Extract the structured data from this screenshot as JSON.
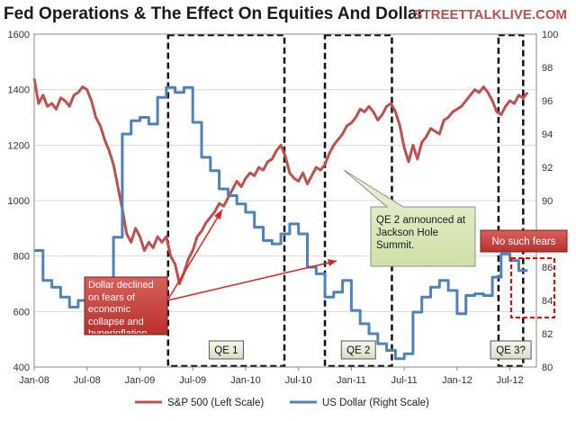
{
  "chart_data": {
    "type": "line",
    "title": "Fed Operations & The Effect On Equities And Dollar",
    "brand": "STREETTALKLIVE.COM",
    "x_ticks": [
      "Jan-08",
      "Jul-08",
      "Jan-09",
      "Jul-09",
      "Jan-10",
      "Jul-10",
      "Jan-11",
      "Jul-11",
      "Jan-12",
      "Jul-12"
    ],
    "xlim": [
      0,
      57
    ],
    "y_left": {
      "ticks": [
        400,
        600,
        800,
        1000,
        1200,
        1400,
        1600
      ],
      "lim": [
        400,
        1600
      ]
    },
    "y_right": {
      "ticks": [
        80,
        82,
        84,
        86,
        88,
        90,
        92,
        94,
        96,
        98,
        100
      ],
      "lim": [
        80,
        100
      ]
    },
    "series": [
      {
        "name": "S&P 500 (Left Scale)",
        "axis": "left",
        "color": "#c0504d",
        "points": [
          [
            0,
            1440
          ],
          [
            0.5,
            1350
          ],
          [
            1,
            1380
          ],
          [
            1.5,
            1340
          ],
          [
            2,
            1350
          ],
          [
            2.5,
            1330
          ],
          [
            3,
            1370
          ],
          [
            3.5,
            1360
          ],
          [
            4,
            1340
          ],
          [
            4.5,
            1380
          ],
          [
            5,
            1390
          ],
          [
            5.5,
            1410
          ],
          [
            6,
            1400
          ],
          [
            6.5,
            1360
          ],
          [
            7,
            1300
          ],
          [
            7.5,
            1270
          ],
          [
            8,
            1220
          ],
          [
            8.5,
            1180
          ],
          [
            9,
            1130
          ],
          [
            9.5,
            1050
          ],
          [
            10,
            970
          ],
          [
            10.5,
            880
          ],
          [
            11,
            850
          ],
          [
            11.5,
            900
          ],
          [
            12,
            870
          ],
          [
            12.5,
            820
          ],
          [
            13,
            850
          ],
          [
            13.5,
            830
          ],
          [
            14,
            870
          ],
          [
            14.5,
            850
          ],
          [
            15,
            870
          ],
          [
            15.5,
            800
          ],
          [
            16,
            770
          ],
          [
            16.5,
            700
          ],
          [
            17,
            740
          ],
          [
            17.5,
            790
          ],
          [
            18,
            820
          ],
          [
            18.5,
            870
          ],
          [
            19,
            890
          ],
          [
            19.5,
            920
          ],
          [
            20,
            940
          ],
          [
            20.5,
            960
          ],
          [
            21,
            990
          ],
          [
            21.5,
            980
          ],
          [
            22,
            1010
          ],
          [
            22.5,
            1040
          ],
          [
            23,
            1070
          ],
          [
            23.5,
            1050
          ],
          [
            24,
            1080
          ],
          [
            24.5,
            1100
          ],
          [
            25,
            1090
          ],
          [
            25.5,
            1120
          ],
          [
            26,
            1110
          ],
          [
            26.5,
            1140
          ],
          [
            27,
            1150
          ],
          [
            27.5,
            1180
          ],
          [
            28,
            1200
          ],
          [
            28.5,
            1160
          ],
          [
            29,
            1100
          ],
          [
            29.5,
            1080
          ],
          [
            30,
            1070
          ],
          [
            30.5,
            1100
          ],
          [
            31,
            1060
          ],
          [
            31.5,
            1090
          ],
          [
            32,
            1120
          ],
          [
            32.5,
            1110
          ],
          [
            33,
            1130
          ],
          [
            33.5,
            1170
          ],
          [
            34,
            1200
          ],
          [
            34.5,
            1220
          ],
          [
            35,
            1240
          ],
          [
            35.5,
            1270
          ],
          [
            36,
            1280
          ],
          [
            36.5,
            1300
          ],
          [
            37,
            1330
          ],
          [
            37.5,
            1320
          ],
          [
            38,
            1340
          ],
          [
            38.5,
            1320
          ],
          [
            39,
            1290
          ],
          [
            39.5,
            1310
          ],
          [
            40,
            1340
          ],
          [
            40.5,
            1350
          ],
          [
            41,
            1320
          ],
          [
            41.5,
            1270
          ],
          [
            42,
            1190
          ],
          [
            42.5,
            1140
          ],
          [
            43,
            1200
          ],
          [
            43.5,
            1150
          ],
          [
            44,
            1210
          ],
          [
            44.5,
            1230
          ],
          [
            45,
            1260
          ],
          [
            45.5,
            1250
          ],
          [
            46,
            1240
          ],
          [
            46.5,
            1290
          ],
          [
            47,
            1300
          ],
          [
            47.5,
            1320
          ],
          [
            48,
            1330
          ],
          [
            48.5,
            1340
          ],
          [
            49,
            1360
          ],
          [
            49.5,
            1380
          ],
          [
            50,
            1400
          ],
          [
            50.5,
            1390
          ],
          [
            51,
            1410
          ],
          [
            51.5,
            1390
          ],
          [
            52,
            1360
          ],
          [
            52.5,
            1320
          ],
          [
            53,
            1310
          ],
          [
            53.5,
            1340
          ],
          [
            54,
            1360
          ],
          [
            54.5,
            1350
          ],
          [
            55,
            1380
          ],
          [
            55.5,
            1370
          ],
          [
            56,
            1390
          ]
        ]
      },
      {
        "name": "US Dollar (Right Scale)",
        "axis": "right",
        "color": "#4f81bd",
        "points": [
          [
            0,
            87
          ],
          [
            1,
            87
          ],
          [
            1,
            85.2
          ],
          [
            2,
            85.2
          ],
          [
            2,
            84.8
          ],
          [
            3,
            84.8
          ],
          [
            3,
            84.2
          ],
          [
            4,
            84.2
          ],
          [
            4,
            83.6
          ],
          [
            5,
            83.6
          ],
          [
            5,
            84
          ],
          [
            6,
            84
          ],
          [
            6,
            84.4
          ],
          [
            7,
            84.4
          ],
          [
            7,
            84
          ],
          [
            8,
            84
          ],
          [
            8,
            84.6
          ],
          [
            9,
            84.6
          ],
          [
            9,
            87.8
          ],
          [
            10,
            87.8
          ],
          [
            10,
            94
          ],
          [
            11,
            94
          ],
          [
            11,
            94.8
          ],
          [
            12,
            94.8
          ],
          [
            12,
            95
          ],
          [
            13,
            95
          ],
          [
            13,
            94.6
          ],
          [
            14,
            94.6
          ],
          [
            14,
            96.2
          ],
          [
            15,
            96.2
          ],
          [
            15,
            96.8
          ],
          [
            16,
            96.8
          ],
          [
            16,
            96.5
          ],
          [
            17,
            96.5
          ],
          [
            17,
            96.8
          ],
          [
            18,
            96.8
          ],
          [
            18,
            94.7
          ],
          [
            19,
            94.7
          ],
          [
            19,
            92.6
          ],
          [
            20,
            92.6
          ],
          [
            20,
            91.8
          ],
          [
            21,
            91.8
          ],
          [
            21,
            90.7
          ],
          [
            22,
            90.7
          ],
          [
            22,
            90.3
          ],
          [
            23,
            90.3
          ],
          [
            23,
            89.8
          ],
          [
            24,
            89.8
          ],
          [
            24,
            89.3
          ],
          [
            25,
            89.3
          ],
          [
            25,
            88.4
          ],
          [
            26,
            88.4
          ],
          [
            26,
            87.6
          ],
          [
            27,
            87.6
          ],
          [
            27,
            87.4
          ],
          [
            28,
            87.4
          ],
          [
            28,
            88
          ],
          [
            29,
            88
          ],
          [
            29,
            88.6
          ],
          [
            30,
            88.6
          ],
          [
            30,
            88
          ],
          [
            31,
            88
          ],
          [
            31,
            86
          ],
          [
            32,
            86
          ],
          [
            32,
            85.6
          ],
          [
            33,
            85.6
          ],
          [
            33,
            84.2
          ],
          [
            34,
            84.2
          ],
          [
            34,
            84.5
          ],
          [
            35,
            84.5
          ],
          [
            35,
            85.2
          ],
          [
            36,
            85.2
          ],
          [
            36,
            83.4
          ],
          [
            37,
            83.4
          ],
          [
            37,
            82.6
          ],
          [
            38,
            82.6
          ],
          [
            38,
            82
          ],
          [
            39,
            82
          ],
          [
            39,
            81.4
          ],
          [
            40,
            81.4
          ],
          [
            40,
            81
          ],
          [
            41,
            81
          ],
          [
            41,
            80.5
          ],
          [
            42,
            80.5
          ],
          [
            42,
            80.8
          ],
          [
            43,
            80.8
          ],
          [
            43,
            83.3
          ],
          [
            44,
            83.3
          ],
          [
            44,
            84.2
          ],
          [
            45,
            84.2
          ],
          [
            45,
            84.8
          ],
          [
            46,
            84.8
          ],
          [
            46,
            85.2
          ],
          [
            47,
            85.2
          ],
          [
            47,
            84.6
          ],
          [
            48,
            84.6
          ],
          [
            48,
            83.2
          ],
          [
            49,
            83.2
          ],
          [
            49,
            84.3
          ],
          [
            50,
            84.3
          ],
          [
            50,
            84.4
          ],
          [
            51,
            84.4
          ],
          [
            51,
            84.3
          ],
          [
            52,
            84.3
          ],
          [
            52,
            85.4
          ],
          [
            53,
            85.4
          ],
          [
            53,
            86.8
          ],
          [
            54,
            86.8
          ],
          [
            54,
            86.4
          ],
          [
            55,
            86.4
          ],
          [
            55,
            85.8
          ],
          [
            56,
            85.8
          ]
        ]
      }
    ],
    "legend_position": "bottom",
    "qe_boxes": [
      {
        "label": "QE 1",
        "x_from": 15.2,
        "x_to": 28.4
      },
      {
        "label": "QE 2",
        "x_from": 33.0,
        "x_to": 40.6
      },
      {
        "label": "QE 3?",
        "x_from": 52.7,
        "x_to": 55.5
      }
    ],
    "annotations": {
      "dollar_declined": "Dollar declined on fears of economic collapse and hyperinflation.",
      "qe2_announced": "QE 2 announced at Jackson Hole Summit.",
      "no_fears": "No such fears"
    }
  }
}
